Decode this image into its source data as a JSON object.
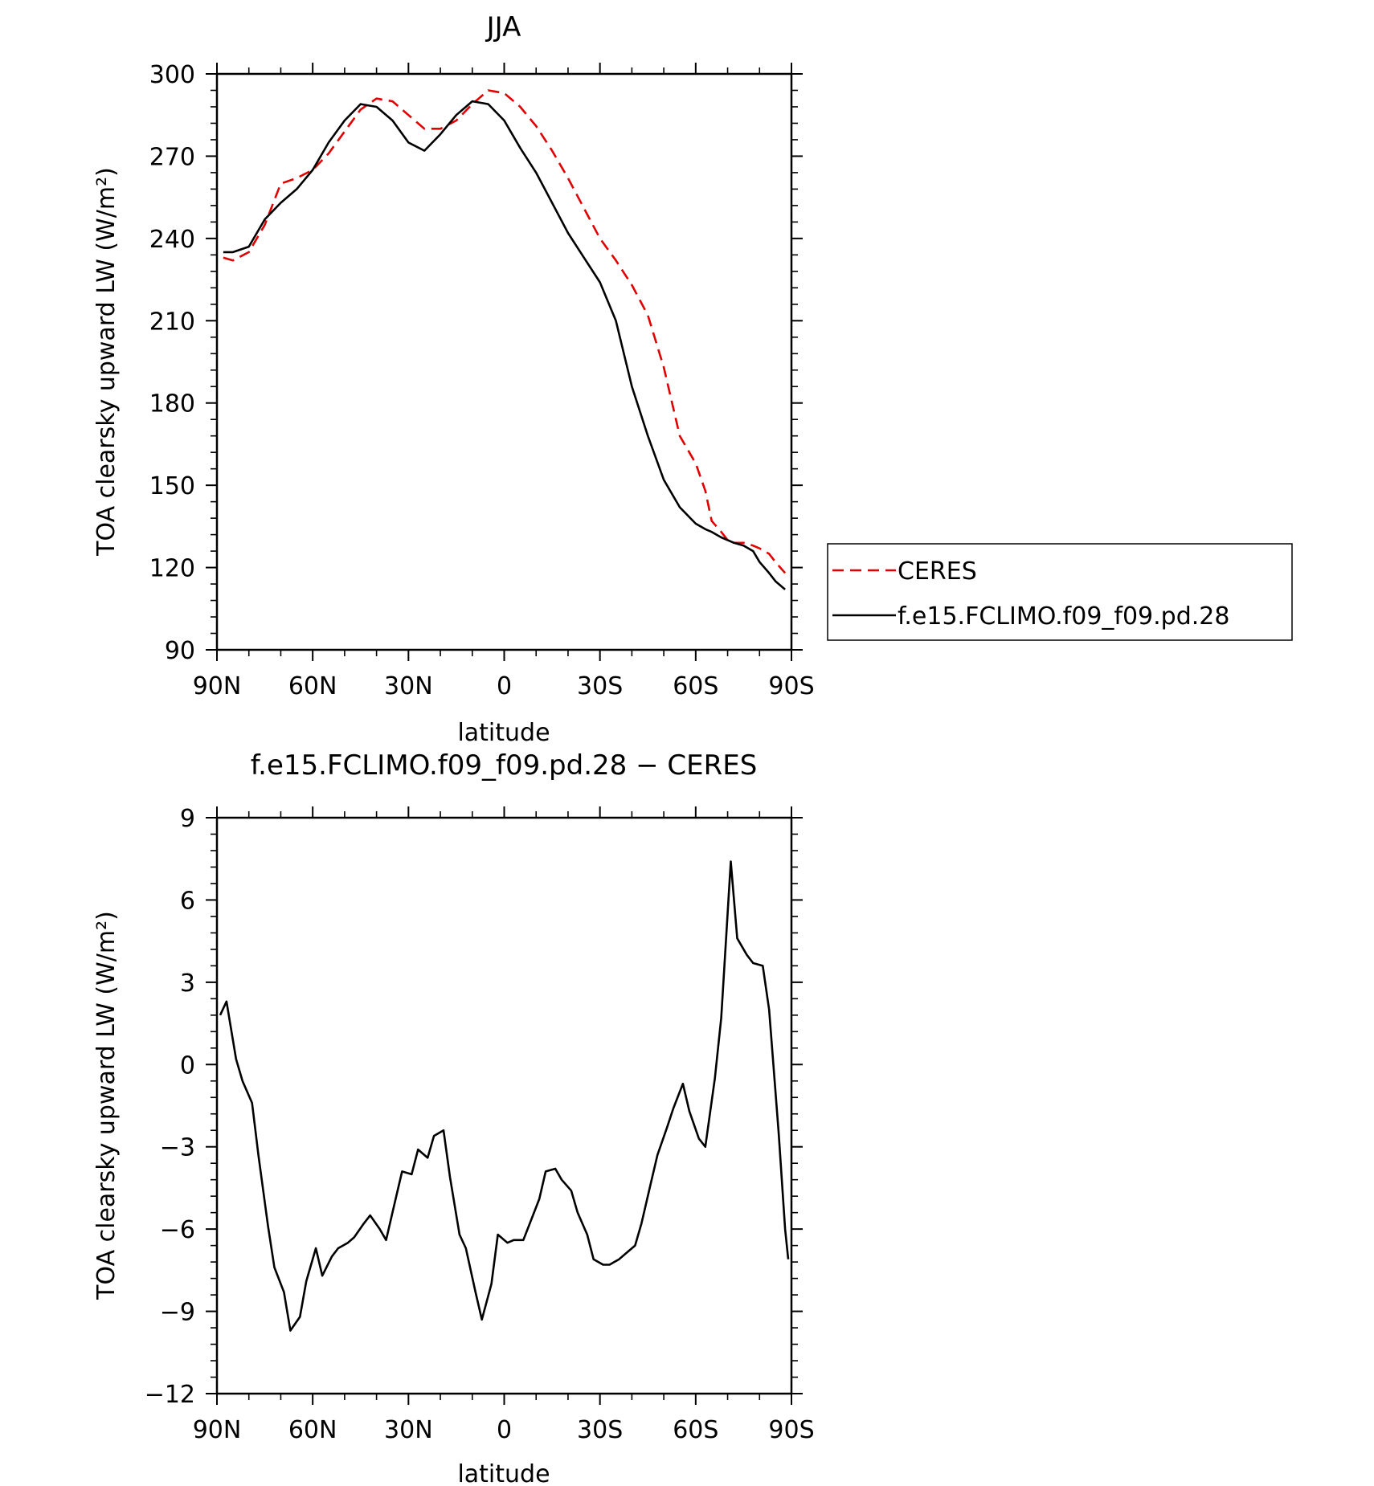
{
  "chart_data": [
    {
      "type": "line",
      "title": "JJA",
      "xlabel": "latitude",
      "ylabel": "TOA clearsky upward LW (W/m²)",
      "xlim": [
        90,
        -90
      ],
      "ylim": [
        90,
        300
      ],
      "x_ticks": [
        90,
        60,
        30,
        0,
        -30,
        -60,
        -90
      ],
      "x_tick_labels": [
        "90N",
        "60N",
        "30N",
        "0",
        "30S",
        "60S",
        "90S"
      ],
      "y_ticks": [
        90,
        120,
        150,
        180,
        210,
        240,
        270,
        300
      ],
      "y_tick_labels": [
        "90",
        "120",
        "150",
        "180",
        "210",
        "240",
        "270",
        "300"
      ],
      "legend": {
        "placement": "right",
        "entries": [
          "CERES",
          "f.e15.FCLIMO.f09_f09.pd.28"
        ]
      },
      "grid": false,
      "series": [
        {
          "name": "CERES",
          "color": "#e00000",
          "style": "dashed",
          "x": [
            88,
            85,
            80,
            75,
            70,
            65,
            60,
            55,
            50,
            45,
            40,
            35,
            30,
            25,
            20,
            15,
            10,
            5,
            0,
            -5,
            -10,
            -15,
            -20,
            -25,
            -30,
            -35,
            -40,
            -45,
            -50,
            -55,
            -60,
            -63,
            -65,
            -68,
            -70,
            -72,
            -75,
            -78,
            -80,
            -83,
            -85,
            -88
          ],
          "values": [
            233,
            232,
            235,
            245,
            260,
            262,
            265,
            271,
            279,
            287,
            291,
            290,
            285,
            280,
            280,
            283,
            289,
            294,
            293,
            288,
            281,
            272,
            262,
            251,
            240,
            232,
            223,
            212,
            193,
            168,
            158,
            148,
            137,
            133,
            130,
            129,
            129,
            128,
            127,
            125,
            122,
            118
          ]
        },
        {
          "name": "f.e15.FCLIMO.f09_f09.pd.28",
          "color": "#000000",
          "style": "solid",
          "x": [
            88,
            85,
            80,
            75,
            70,
            65,
            60,
            55,
            50,
            45,
            40,
            35,
            30,
            25,
            20,
            15,
            10,
            5,
            0,
            -5,
            -10,
            -15,
            -20,
            -25,
            -30,
            -35,
            -40,
            -45,
            -50,
            -55,
            -60,
            -63,
            -65,
            -68,
            -70,
            -72,
            -75,
            -78,
            -80,
            -83,
            -85,
            -88
          ],
          "values": [
            235,
            235,
            237,
            247,
            253,
            258,
            265,
            275,
            283,
            289,
            288,
            283,
            275,
            272,
            278,
            285,
            290,
            289,
            283,
            273,
            264,
            253,
            242,
            233,
            224,
            210,
            186,
            168,
            152,
            142,
            136,
            134,
            133,
            131,
            130,
            129,
            128,
            126,
            122,
            118,
            115,
            112
          ]
        }
      ]
    },
    {
      "type": "line",
      "title": "f.e15.FCLIMO.f09_f09.pd.28 − CERES",
      "xlabel": "latitude",
      "ylabel": "TOA clearsky upward LW (W/m²)",
      "xlim": [
        90,
        -90
      ],
      "ylim": [
        -12,
        9
      ],
      "x_ticks": [
        90,
        60,
        30,
        0,
        -30,
        -60,
        -90
      ],
      "x_tick_labels": [
        "90N",
        "60N",
        "30N",
        "0",
        "30S",
        "60S",
        "90S"
      ],
      "y_ticks": [
        -12,
        -9,
        -6,
        -3,
        0,
        3,
        6,
        9
      ],
      "y_tick_labels": [
        "−12",
        "−9",
        "−6",
        "−3",
        "0",
        "3",
        "6",
        "9"
      ],
      "grid": false,
      "series": [
        {
          "color": "#000000",
          "style": "solid",
          "x": [
            89,
            87,
            84,
            82,
            79,
            77,
            74,
            72,
            69,
            67,
            64,
            62,
            59,
            57,
            54,
            52,
            49,
            47,
            44,
            42,
            39,
            37,
            34,
            32,
            29,
            27,
            24,
            22,
            19,
            17,
            14,
            12,
            9,
            7,
            4,
            2,
            -1,
            -3,
            -6,
            -8,
            -11,
            -13,
            -16,
            -18,
            -21,
            -23,
            -26,
            -28,
            -31,
            -33,
            -36,
            -38,
            -41,
            -43,
            -46,
            -48,
            -51,
            -53,
            -56,
            -58,
            -61,
            -63,
            -66,
            -68,
            -71,
            -73,
            -76,
            -78,
            -81,
            -83,
            -86,
            -88,
            -89
          ],
          "values": [
            1.8,
            2.3,
            0.2,
            -0.6,
            -1.4,
            -3.3,
            -5.9,
            -7.4,
            -8.3,
            -9.7,
            -9.2,
            -7.9,
            -6.7,
            -7.7,
            -7.0,
            -6.7,
            -6.5,
            -6.3,
            -5.8,
            -5.5,
            -6.0,
            -6.4,
            -4.9,
            -3.9,
            -4.0,
            -3.1,
            -3.4,
            -2.6,
            -2.4,
            -4.1,
            -6.2,
            -6.7,
            -8.3,
            -9.3,
            -8.0,
            -6.2,
            -6.5,
            -6.4,
            -6.4,
            -5.8,
            -4.9,
            -3.9,
            -3.8,
            -4.2,
            -4.6,
            -5.4,
            -6.2,
            -7.1,
            -7.3,
            -7.3,
            -7.1,
            -6.9,
            -6.6,
            -5.8,
            -4.3,
            -3.3,
            -2.3,
            -1.6,
            -0.7,
            -1.7,
            -2.7,
            -3.0,
            -0.5,
            1.7,
            7.4,
            4.6,
            4.0,
            3.7,
            3.6,
            2.0,
            -2.5,
            -6.0,
            -7.1
          ]
        }
      ]
    }
  ]
}
